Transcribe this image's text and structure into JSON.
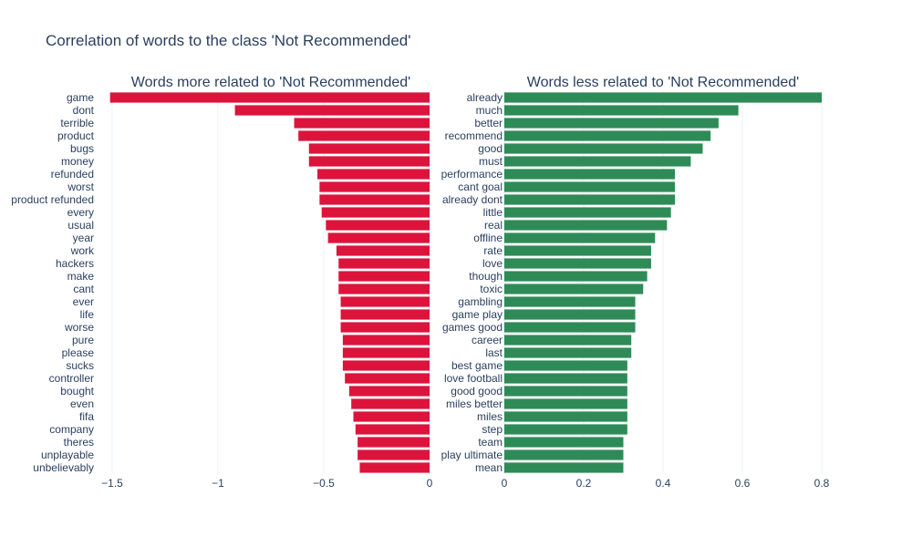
{
  "title": "Correlation of words to the class 'Not Recommended'",
  "chart_data": [
    {
      "type": "bar",
      "orientation": "horizontal",
      "title": "Words more related to 'Not Recommended'",
      "color": "#dc143c",
      "xlim": [
        -1.5,
        0
      ],
      "xticks": [
        -1.5,
        -1,
        -0.5,
        0
      ],
      "xtick_labels": [
        "−1.5",
        "−1",
        "−0.5",
        "0"
      ],
      "categories": [
        "game",
        "dont",
        "terrible",
        "product",
        "bugs",
        "money",
        "refunded",
        "worst",
        "product refunded",
        "every",
        "usual",
        "year",
        "work",
        "hackers",
        "make",
        "cant",
        "ever",
        "life",
        "worse",
        "pure",
        "please",
        "sucks",
        "controller",
        "bought",
        "even",
        "fifa",
        "company",
        "theres",
        "unplayable",
        "unbelievably"
      ],
      "values": [
        -1.51,
        -0.92,
        -0.64,
        -0.62,
        -0.57,
        -0.57,
        -0.53,
        -0.52,
        -0.52,
        -0.51,
        -0.49,
        -0.48,
        -0.44,
        -0.43,
        -0.43,
        -0.43,
        -0.42,
        -0.42,
        -0.42,
        -0.41,
        -0.41,
        -0.41,
        -0.4,
        -0.38,
        -0.37,
        -0.36,
        -0.35,
        -0.34,
        -0.34,
        -0.33
      ]
    },
    {
      "type": "bar",
      "orientation": "horizontal",
      "title": "Words less related to 'Not Recommended'",
      "color": "#2e8b57",
      "xlim": [
        0,
        0.8
      ],
      "xticks": [
        0,
        0.2,
        0.4,
        0.6,
        0.8
      ],
      "xtick_labels": [
        "0",
        "0.2",
        "0.4",
        "0.6",
        "0.8"
      ],
      "categories": [
        "already",
        "much",
        "better",
        "recommend",
        "good",
        "must",
        "performance",
        "cant goal",
        "already dont",
        "little",
        "real",
        "offline",
        "rate",
        "love",
        "though",
        "toxic",
        "gambling",
        "game play",
        "games good",
        "career",
        "last",
        "best game",
        "love football",
        "good good",
        "miles better",
        "miles",
        "step",
        "team",
        "play ultimate",
        "mean"
      ],
      "values": [
        0.8,
        0.59,
        0.54,
        0.52,
        0.5,
        0.47,
        0.43,
        0.43,
        0.43,
        0.42,
        0.41,
        0.38,
        0.37,
        0.37,
        0.36,
        0.35,
        0.33,
        0.33,
        0.33,
        0.32,
        0.32,
        0.31,
        0.31,
        0.31,
        0.31,
        0.31,
        0.31,
        0.3,
        0.3,
        0.3
      ]
    }
  ]
}
